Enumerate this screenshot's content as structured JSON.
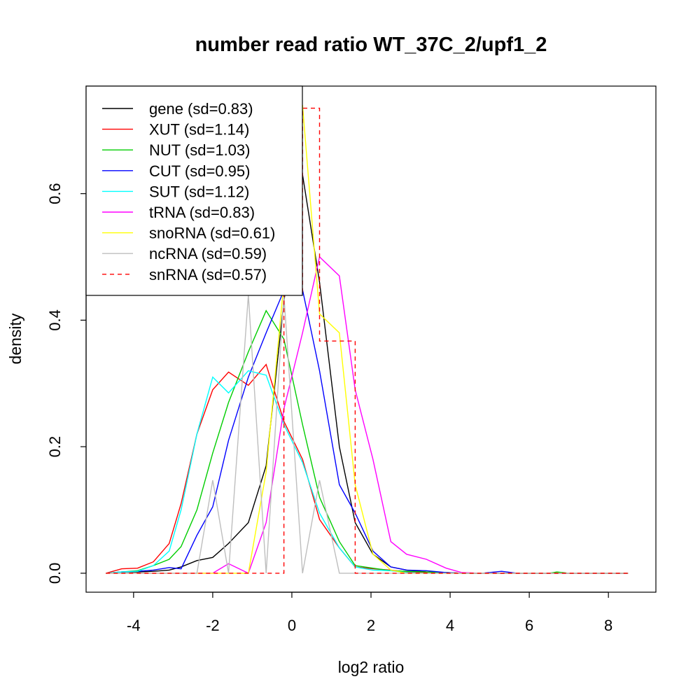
{
  "chart_data": {
    "type": "line",
    "title": "number read ratio WT_37C_2/upf1_2",
    "xlabel": "log2 ratio",
    "ylabel": "density",
    "xlim": [
      -5.2,
      9.2
    ],
    "ylim": [
      -0.03,
      0.77
    ],
    "x_ticks": [
      -4,
      -2,
      0,
      2,
      4,
      6,
      8
    ],
    "x_tick_labels": [
      "-4",
      "-2",
      "0",
      "2",
      "4",
      "6",
      "8"
    ],
    "y_ticks": [
      0.0,
      0.2,
      0.4,
      0.6
    ],
    "y_tick_labels": [
      "0.0",
      "0.2",
      "0.4",
      "0.6"
    ],
    "grid": false,
    "legend_position": "top-left",
    "series": [
      {
        "name": "gene (sd=0.83)",
        "color": "#000000",
        "dashed": false,
        "step": false,
        "points": [
          [
            -4.7,
            0
          ],
          [
            -4.3,
            0.002
          ],
          [
            -3.9,
            0.002
          ],
          [
            -3.5,
            0.003
          ],
          [
            -3.1,
            0.005
          ],
          [
            -2.8,
            0.01
          ],
          [
            -2.4,
            0.02
          ],
          [
            -2.0,
            0.025
          ],
          [
            -1.6,
            0.047
          ],
          [
            -1.1,
            0.08
          ],
          [
            -0.65,
            0.17
          ],
          [
            -0.2,
            0.43
          ],
          [
            0.27,
            0.63
          ],
          [
            0.7,
            0.46
          ],
          [
            1.2,
            0.2
          ],
          [
            1.6,
            0.08
          ],
          [
            2.05,
            0.03
          ],
          [
            2.5,
            0.01
          ],
          [
            2.9,
            0.005
          ],
          [
            3.4,
            0.002
          ],
          [
            3.9,
            0.001
          ],
          [
            4.3,
            0
          ],
          [
            8.5,
            0
          ]
        ]
      },
      {
        "name": "XUT (sd=1.14)",
        "color": "#FF0000",
        "dashed": false,
        "step": false,
        "points": [
          [
            -4.7,
            0
          ],
          [
            -4.3,
            0.007
          ],
          [
            -3.9,
            0.008
          ],
          [
            -3.5,
            0.018
          ],
          [
            -3.1,
            0.047
          ],
          [
            -2.8,
            0.11
          ],
          [
            -2.4,
            0.22
          ],
          [
            -2.0,
            0.29
          ],
          [
            -1.6,
            0.318
          ],
          [
            -1.1,
            0.297
          ],
          [
            -0.65,
            0.33
          ],
          [
            -0.2,
            0.24
          ],
          [
            0.27,
            0.18
          ],
          [
            0.7,
            0.085
          ],
          [
            1.2,
            0.04
          ],
          [
            1.6,
            0.01
          ],
          [
            2.05,
            0.007
          ],
          [
            2.5,
            0.005
          ],
          [
            2.9,
            0.002
          ],
          [
            3.4,
            0.001
          ],
          [
            3.9,
            0
          ],
          [
            8.5,
            0
          ]
        ]
      },
      {
        "name": "NUT (sd=1.03)",
        "color": "#00CD00",
        "dashed": false,
        "step": false,
        "points": [
          [
            -4.7,
            0
          ],
          [
            -4.3,
            0.002
          ],
          [
            -3.9,
            0.004
          ],
          [
            -3.5,
            0.012
          ],
          [
            -3.1,
            0.022
          ],
          [
            -2.8,
            0.042
          ],
          [
            -2.4,
            0.1
          ],
          [
            -2.0,
            0.19
          ],
          [
            -1.6,
            0.27
          ],
          [
            -1.1,
            0.35
          ],
          [
            -0.65,
            0.415
          ],
          [
            -0.2,
            0.37
          ],
          [
            0.27,
            0.235
          ],
          [
            0.7,
            0.12
          ],
          [
            1.2,
            0.05
          ],
          [
            1.6,
            0.012
          ],
          [
            2.05,
            0.008
          ],
          [
            2.5,
            0.004
          ],
          [
            2.9,
            0.003
          ],
          [
            3.4,
            0.002
          ],
          [
            3.9,
            0.001
          ],
          [
            4.3,
            0
          ],
          [
            6.5,
            0
          ],
          [
            6.7,
            0.002
          ],
          [
            7.0,
            0
          ],
          [
            8.5,
            0
          ]
        ]
      },
      {
        "name": "CUT (sd=0.95)",
        "color": "#0000FF",
        "dashed": false,
        "step": false,
        "points": [
          [
            -4.7,
            0
          ],
          [
            -4.3,
            0.002
          ],
          [
            -3.9,
            0.003
          ],
          [
            -3.5,
            0.005
          ],
          [
            -3.1,
            0.009
          ],
          [
            -2.8,
            0.007
          ],
          [
            -2.4,
            0.06
          ],
          [
            -2.0,
            0.105
          ],
          [
            -1.6,
            0.21
          ],
          [
            -1.1,
            0.31
          ],
          [
            -0.65,
            0.38
          ],
          [
            -0.2,
            0.447
          ],
          [
            0.27,
            0.448
          ],
          [
            0.7,
            0.32
          ],
          [
            1.2,
            0.14
          ],
          [
            1.6,
            0.095
          ],
          [
            2.05,
            0.035
          ],
          [
            2.5,
            0.01
          ],
          [
            2.9,
            0.005
          ],
          [
            3.4,
            0.004
          ],
          [
            3.9,
            0.001
          ],
          [
            4.3,
            0
          ],
          [
            4.8,
            0
          ],
          [
            5.3,
            0.003
          ],
          [
            5.7,
            0
          ],
          [
            8.5,
            0
          ]
        ]
      },
      {
        "name": "SUT (sd=1.12)",
        "color": "#00FFFF",
        "dashed": false,
        "step": false,
        "points": [
          [
            -4.7,
            0
          ],
          [
            -4.3,
            0.002
          ],
          [
            -3.9,
            0.003
          ],
          [
            -3.5,
            0.012
          ],
          [
            -3.1,
            0.035
          ],
          [
            -2.8,
            0.1
          ],
          [
            -2.4,
            0.22
          ],
          [
            -2.0,
            0.31
          ],
          [
            -1.6,
            0.285
          ],
          [
            -1.1,
            0.32
          ],
          [
            -0.65,
            0.313
          ],
          [
            -0.2,
            0.235
          ],
          [
            0.27,
            0.175
          ],
          [
            0.7,
            0.095
          ],
          [
            1.2,
            0.04
          ],
          [
            1.6,
            0.01
          ],
          [
            2.05,
            0.005
          ],
          [
            2.5,
            0.004
          ],
          [
            2.9,
            0.001
          ],
          [
            3.4,
            0
          ],
          [
            8.5,
            0
          ]
        ]
      },
      {
        "name": "tRNA (sd=0.83)",
        "color": "#FF00FF",
        "dashed": false,
        "step": false,
        "points": [
          [
            -4.7,
            0
          ],
          [
            -2.0,
            0
          ],
          [
            -1.6,
            0.015
          ],
          [
            -1.1,
            0
          ],
          [
            -0.65,
            0.08
          ],
          [
            -0.2,
            0.26
          ],
          [
            0.27,
            0.38
          ],
          [
            0.7,
            0.5
          ],
          [
            1.2,
            0.47
          ],
          [
            1.6,
            0.29
          ],
          [
            2.05,
            0.18
          ],
          [
            2.5,
            0.05
          ],
          [
            2.9,
            0.03
          ],
          [
            3.4,
            0.022
          ],
          [
            3.9,
            0.008
          ],
          [
            4.3,
            0.001
          ],
          [
            4.8,
            0
          ],
          [
            8.5,
            0
          ]
        ]
      },
      {
        "name": "snoRNA (sd=0.61)",
        "color": "#FFFF00",
        "dashed": false,
        "step": false,
        "points": [
          [
            -4.7,
            0
          ],
          [
            -1.1,
            0
          ],
          [
            -0.65,
            0.16
          ],
          [
            -0.2,
            0.46
          ],
          [
            0.27,
            0.74
          ],
          [
            0.7,
            0.41
          ],
          [
            1.2,
            0.38
          ],
          [
            1.6,
            0.14
          ],
          [
            2.05,
            0.03
          ],
          [
            2.5,
            0.005
          ],
          [
            2.9,
            0
          ],
          [
            8.5,
            0
          ]
        ]
      },
      {
        "name": "ncRNA (sd=0.59)",
        "color": "#BEBEBE",
        "dashed": false,
        "step": false,
        "points": [
          [
            -4.7,
            0
          ],
          [
            -2.4,
            0
          ],
          [
            -2.0,
            0.147
          ],
          [
            -1.6,
            0
          ],
          [
            -1.1,
            0.44
          ],
          [
            -0.65,
            0
          ],
          [
            -0.2,
            0.44
          ],
          [
            0.27,
            0
          ],
          [
            0.7,
            0.147
          ],
          [
            1.2,
            0
          ],
          [
            8.5,
            0
          ]
        ]
      },
      {
        "name": "snRNA (sd=0.57)",
        "color": "#FF0000",
        "dashed": true,
        "step": true,
        "points": [
          [
            -4.7,
            0
          ],
          [
            -0.65,
            0
          ],
          [
            -0.2,
            0.44
          ],
          [
            0.27,
            0.735
          ],
          [
            0.7,
            0.367
          ],
          [
            1.2,
            0.367
          ],
          [
            1.6,
            0
          ],
          [
            8.5,
            0
          ]
        ]
      }
    ]
  }
}
